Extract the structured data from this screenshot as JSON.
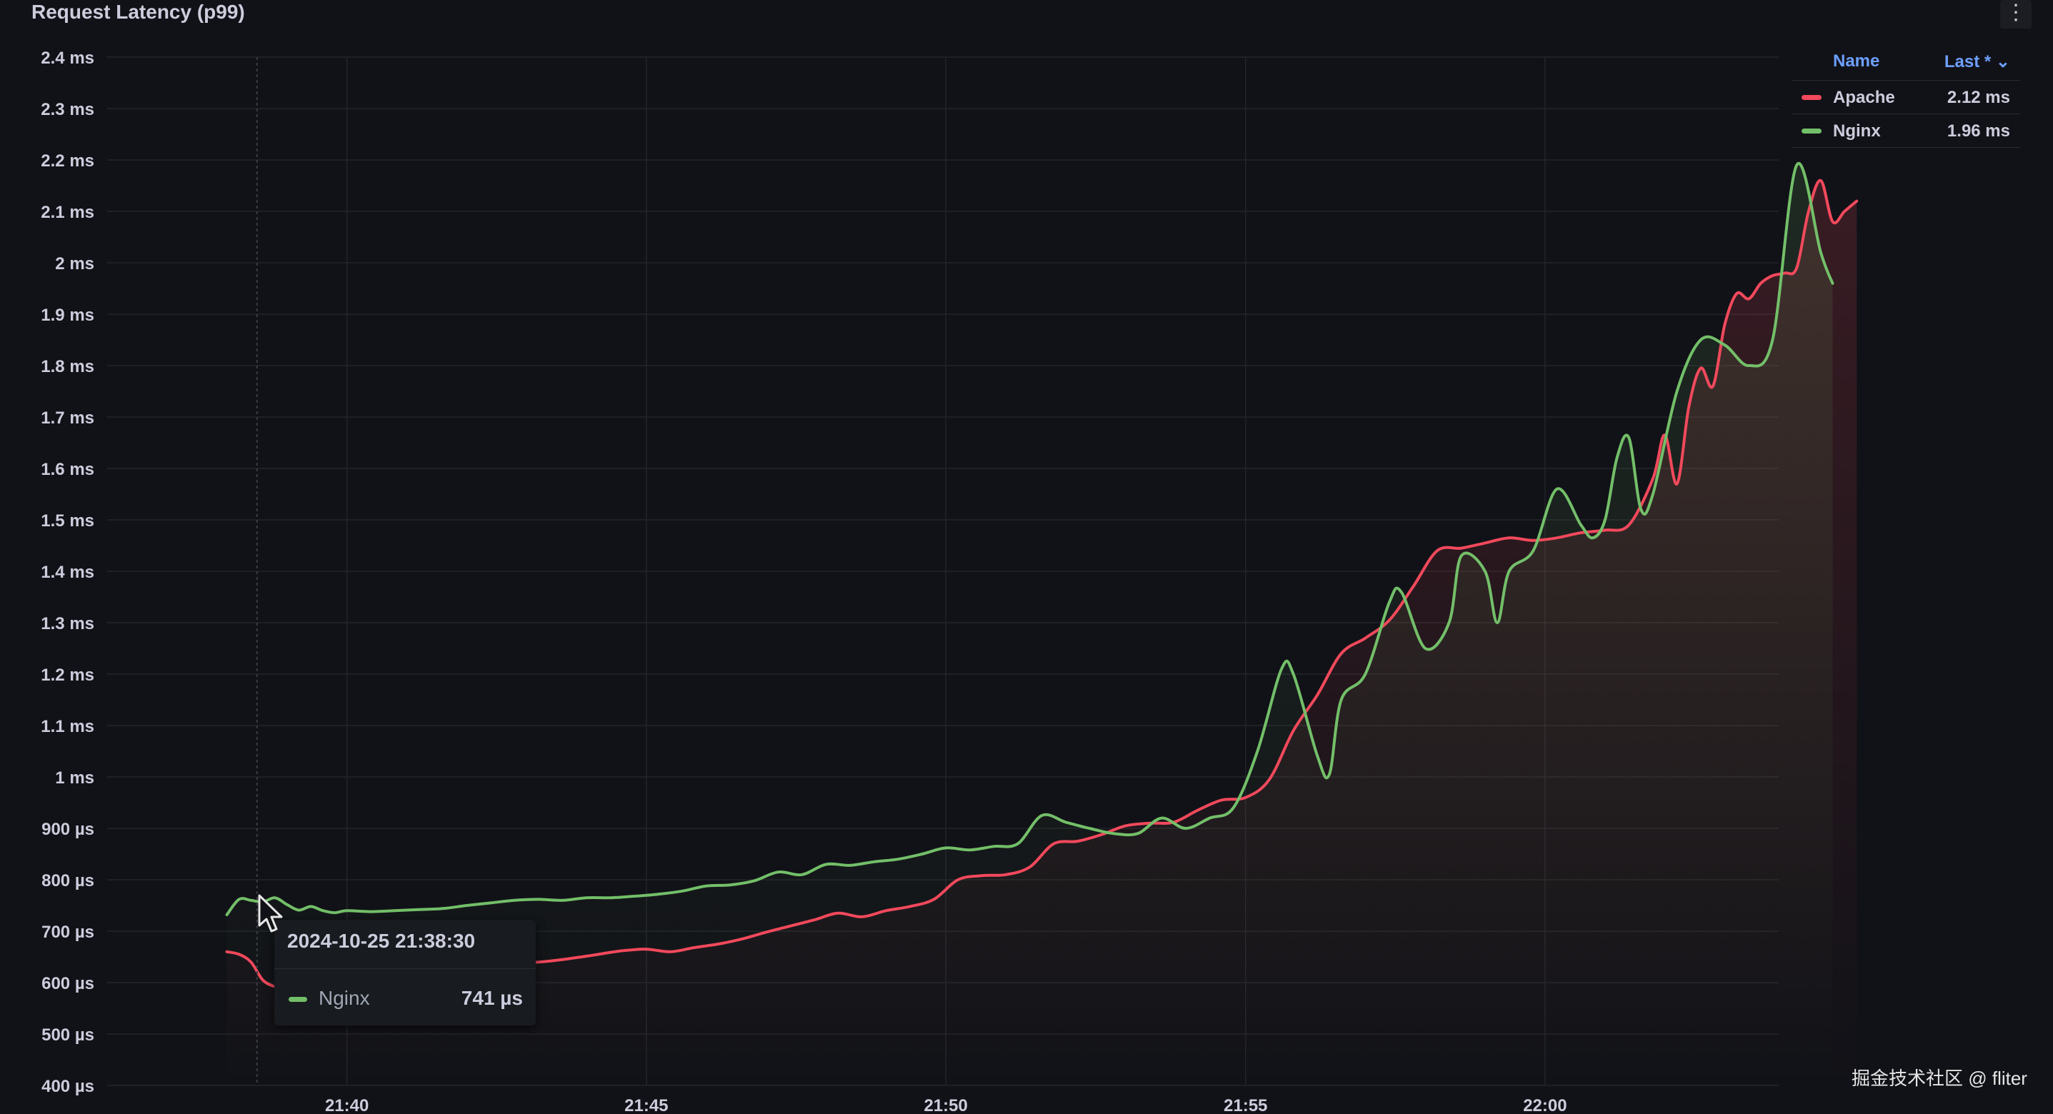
{
  "panel": {
    "title": "Request Latency (p99)",
    "menu_icon": "vertical-ellipsis-icon"
  },
  "chart_data": {
    "type": "line",
    "y_tick_labels": [
      "2.4 ms",
      "2.3 ms",
      "2.2 ms",
      "2.1 ms",
      "2 ms",
      "1.9 ms",
      "1.8 ms",
      "1.7 ms",
      "1.6 ms",
      "1.5 ms",
      "1.4 ms",
      "1.3 ms",
      "1.2 ms",
      "1.1 ms",
      "1 ms",
      "900 µs",
      "800 µs",
      "700 µs",
      "600 µs",
      "500 µs",
      "400 µs"
    ],
    "y_tick_values": [
      2.4,
      2.3,
      2.2,
      2.1,
      2.0,
      1.9,
      1.8,
      1.7,
      1.6,
      1.5,
      1.4,
      1.3,
      1.2,
      1.1,
      1.0,
      0.9,
      0.8,
      0.7,
      0.6,
      0.5,
      0.4
    ],
    "ylim": [
      0.4,
      2.4
    ],
    "x_tick_labels": [
      "21:40",
      "21:45",
      "21:50",
      "21:55",
      "22:00"
    ],
    "x_tick_values": [
      21.6667,
      21.75,
      21.8333,
      21.9167,
      22.0
    ],
    "xlim": [
      21.6,
      22.065
    ],
    "grid": true,
    "legend_placement": "right",
    "series": [
      {
        "name": "Apache",
        "color": "#f2495c",
        "points": [
          [
            21.6333,
            0.66
          ],
          [
            21.6367,
            0.655
          ],
          [
            21.64,
            0.64
          ],
          [
            21.6433,
            0.605
          ],
          [
            21.6467,
            0.592
          ],
          [
            21.65,
            0.585
          ],
          [
            21.6533,
            0.578
          ],
          [
            21.6567,
            0.575
          ],
          [
            21.66,
            0.572
          ],
          [
            21.6633,
            0.575
          ],
          [
            21.6667,
            0.578
          ],
          [
            21.67,
            0.585
          ],
          [
            21.6767,
            0.59
          ],
          [
            21.6833,
            0.6
          ],
          [
            21.69,
            0.61
          ],
          [
            21.6967,
            0.618
          ],
          [
            21.7033,
            0.625
          ],
          [
            21.71,
            0.632
          ],
          [
            21.7167,
            0.638
          ],
          [
            21.7233,
            0.642
          ],
          [
            21.73,
            0.648
          ],
          [
            21.7367,
            0.655
          ],
          [
            21.7433,
            0.662
          ],
          [
            21.75,
            0.665
          ],
          [
            21.7567,
            0.66
          ],
          [
            21.7633,
            0.668
          ],
          [
            21.77,
            0.675
          ],
          [
            21.7767,
            0.685
          ],
          [
            21.7833,
            0.698
          ],
          [
            21.79,
            0.71
          ],
          [
            21.7967,
            0.722
          ],
          [
            21.8033,
            0.735
          ],
          [
            21.81,
            0.728
          ],
          [
            21.8167,
            0.74
          ],
          [
            21.8233,
            0.748
          ],
          [
            21.83,
            0.762
          ],
          [
            21.8367,
            0.8
          ],
          [
            21.8433,
            0.808
          ],
          [
            21.85,
            0.81
          ],
          [
            21.8567,
            0.825
          ],
          [
            21.8633,
            0.87
          ],
          [
            21.87,
            0.875
          ],
          [
            21.8767,
            0.888
          ],
          [
            21.8833,
            0.905
          ],
          [
            21.89,
            0.91
          ],
          [
            21.8967,
            0.912
          ],
          [
            21.9033,
            0.935
          ],
          [
            21.91,
            0.955
          ],
          [
            21.9167,
            0.96
          ],
          [
            21.9233,
            0.995
          ],
          [
            21.93,
            1.09
          ],
          [
            21.9367,
            1.16
          ],
          [
            21.9433,
            1.24
          ],
          [
            21.95,
            1.27
          ],
          [
            21.9567,
            1.305
          ],
          [
            21.9633,
            1.37
          ],
          [
            21.97,
            1.44
          ],
          [
            21.9767,
            1.445
          ],
          [
            21.9833,
            1.455
          ],
          [
            21.99,
            1.465
          ],
          [
            21.9967,
            1.46
          ],
          [
            22.0033,
            1.465
          ],
          [
            22.01,
            1.475
          ],
          [
            22.0167,
            1.48
          ],
          [
            22.0233,
            1.49
          ],
          [
            22.03,
            1.58
          ],
          [
            22.0333,
            1.665
          ],
          [
            22.0367,
            1.57
          ],
          [
            22.04,
            1.72
          ],
          [
            22.0433,
            1.795
          ],
          [
            22.0467,
            1.76
          ],
          [
            22.05,
            1.88
          ],
          [
            22.0533,
            1.94
          ],
          [
            22.0567,
            1.93
          ],
          [
            22.06,
            1.96
          ],
          [
            22.0633,
            1.975
          ],
          [
            22.0667,
            1.98
          ],
          [
            22.07,
            1.99
          ],
          [
            22.0733,
            2.1
          ],
          [
            22.0767,
            2.16
          ],
          [
            22.08,
            2.08
          ],
          [
            22.0833,
            2.1
          ],
          [
            22.0867,
            2.12
          ]
        ]
      },
      {
        "name": "Nginx",
        "color": "#73bf69",
        "points": [
          [
            21.6333,
            0.732
          ],
          [
            21.6367,
            0.762
          ],
          [
            21.64,
            0.76
          ],
          [
            21.6433,
            0.757
          ],
          [
            21.6467,
            0.765
          ],
          [
            21.65,
            0.752
          ],
          [
            21.6533,
            0.741
          ],
          [
            21.6567,
            0.748
          ],
          [
            21.66,
            0.74
          ],
          [
            21.6633,
            0.736
          ],
          [
            21.6667,
            0.74
          ],
          [
            21.6733,
            0.738
          ],
          [
            21.68,
            0.74
          ],
          [
            21.6867,
            0.742
          ],
          [
            21.6933,
            0.744
          ],
          [
            21.7,
            0.75
          ],
          [
            21.7067,
            0.755
          ],
          [
            21.7133,
            0.76
          ],
          [
            21.72,
            0.762
          ],
          [
            21.7267,
            0.76
          ],
          [
            21.7333,
            0.765
          ],
          [
            21.74,
            0.765
          ],
          [
            21.7467,
            0.768
          ],
          [
            21.7533,
            0.772
          ],
          [
            21.76,
            0.778
          ],
          [
            21.7667,
            0.788
          ],
          [
            21.7733,
            0.79
          ],
          [
            21.78,
            0.798
          ],
          [
            21.7867,
            0.815
          ],
          [
            21.7933,
            0.81
          ],
          [
            21.8,
            0.83
          ],
          [
            21.8067,
            0.828
          ],
          [
            21.8133,
            0.835
          ],
          [
            21.82,
            0.84
          ],
          [
            21.8267,
            0.85
          ],
          [
            21.8333,
            0.862
          ],
          [
            21.84,
            0.858
          ],
          [
            21.8467,
            0.865
          ],
          [
            21.8533,
            0.87
          ],
          [
            21.86,
            0.925
          ],
          [
            21.8667,
            0.912
          ],
          [
            21.8733,
            0.9
          ],
          [
            21.88,
            0.89
          ],
          [
            21.8867,
            0.89
          ],
          [
            21.8933,
            0.92
          ],
          [
            21.9,
            0.9
          ],
          [
            21.9067,
            0.92
          ],
          [
            21.9133,
            0.94
          ],
          [
            21.92,
            1.05
          ],
          [
            21.9267,
            1.21
          ],
          [
            21.93,
            1.2
          ],
          [
            21.9367,
            1.04
          ],
          [
            21.94,
            1.005
          ],
          [
            21.9433,
            1.15
          ],
          [
            21.95,
            1.2
          ],
          [
            21.9567,
            1.34
          ],
          [
            21.96,
            1.36
          ],
          [
            21.9667,
            1.25
          ],
          [
            21.9733,
            1.3
          ],
          [
            21.9767,
            1.43
          ],
          [
            21.9833,
            1.4
          ],
          [
            21.9867,
            1.3
          ],
          [
            21.99,
            1.4
          ],
          [
            21.9967,
            1.44
          ],
          [
            22.0033,
            1.56
          ],
          [
            22.01,
            1.49
          ],
          [
            22.0133,
            1.465
          ],
          [
            22.0167,
            1.5
          ],
          [
            22.02,
            1.62
          ],
          [
            22.0233,
            1.66
          ],
          [
            22.0267,
            1.52
          ],
          [
            22.03,
            1.55
          ],
          [
            22.0367,
            1.75
          ],
          [
            22.0433,
            1.85
          ],
          [
            22.05,
            1.84
          ],
          [
            22.0567,
            1.8
          ],
          [
            22.0633,
            1.85
          ],
          [
            22.07,
            2.19
          ],
          [
            22.0767,
            2.02
          ],
          [
            22.08,
            1.96
          ]
        ]
      }
    ]
  },
  "legend": {
    "header_name": "Name",
    "header_last": "Last * ⌄",
    "rows": [
      {
        "name": "Apache",
        "value": "2.12 ms",
        "color": "#f2495c"
      },
      {
        "name": "Nginx",
        "value": "1.96 ms",
        "color": "#73bf69"
      }
    ]
  },
  "tooltip": {
    "time": "2024-10-25 21:38:30",
    "series_name": "Nginx",
    "series_color": "#73bf69",
    "value": "741 µs"
  },
  "cursor_icon": "mouse-pointer-icon",
  "watermark": "掘金技术社区 @ fliter"
}
